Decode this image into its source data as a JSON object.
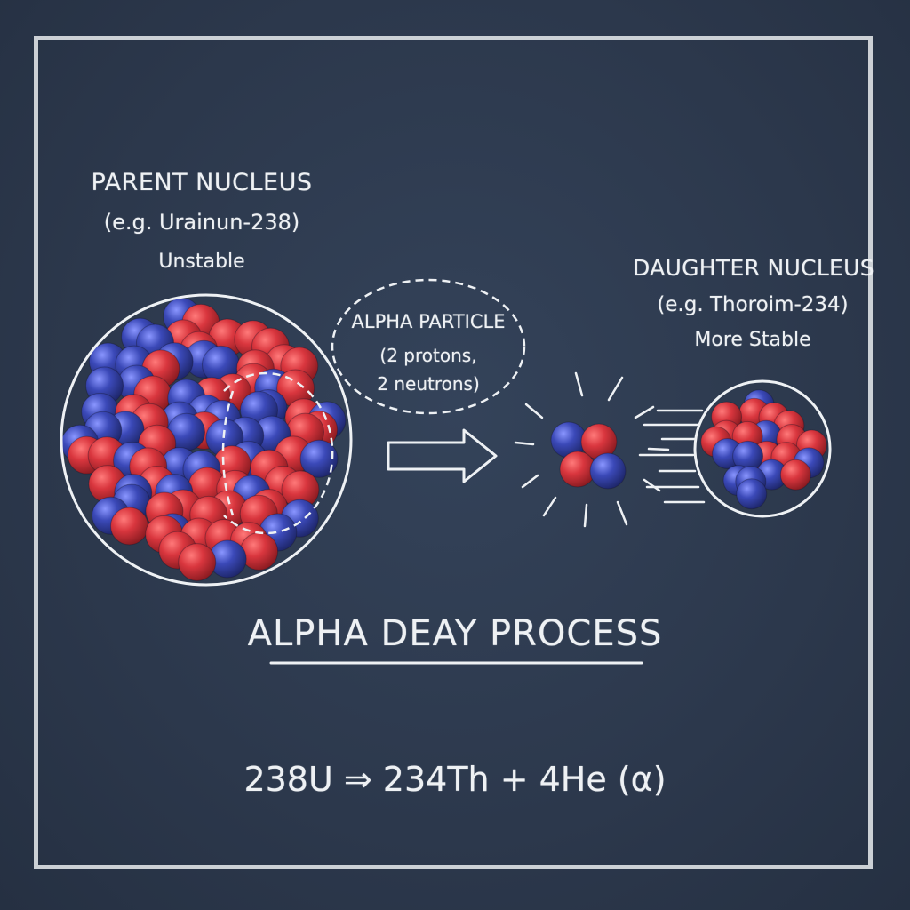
{
  "parent": {
    "title": "PARENT NUCLEUS",
    "example": "(e.g. Urainun-238)",
    "state": "Unstable"
  },
  "alpha": {
    "title": "ALPHA PARTICLE",
    "line1": "(2 protons,",
    "line2": "2 neutrons)"
  },
  "daughter": {
    "title": "DAUGHTER NUCLEUS",
    "example": "(e.g. Thoroim-234)",
    "state": "More Stable"
  },
  "process_title": "ALPHA DEAY PROCESS",
  "equation": "238U ⇒ 234Th + 4He (α)",
  "colors": {
    "board": "#2d3a4e",
    "chalk": "#eef1f4",
    "proton": "#d9363e",
    "neutron": "#3b49b8"
  }
}
